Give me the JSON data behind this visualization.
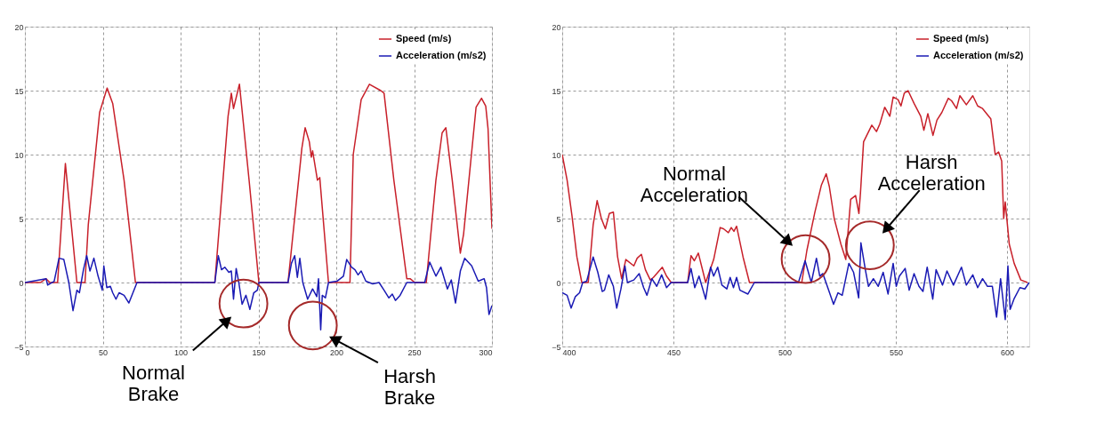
{
  "chart_data": [
    {
      "type": "line",
      "xlim": [
        0,
        300
      ],
      "xticks": [
        0,
        50,
        100,
        150,
        200,
        250,
        300
      ],
      "ylim": [
        -5,
        20
      ],
      "yticks": [
        -5,
        0,
        5,
        10,
        15,
        20
      ],
      "grid": true,
      "legend": "top right",
      "marker": "none",
      "line_style": "solid",
      "series": [
        {
          "name": "Speed (m/s)",
          "color": "#c8202a",
          "x": [
            0,
            10,
            13.6,
            16,
            21,
            26,
            33.4,
            38.6,
            40.7,
            48,
            52.8,
            56.4,
            63.7,
            71,
            122,
            130.5,
            132.6,
            134,
            137.8,
            144,
            150.3,
            169,
            177.9,
            180,
            182.7,
            184,
            184.8,
            187.9,
            189.4,
            195,
            205,
            208.8,
            210.9,
            216,
            221.3,
            228.6,
            230.7,
            237,
            245.3,
            247.4,
            250.5,
            257.8,
            264,
            268,
            270.4,
            274.5,
            279.7,
            281.8,
            289.8,
            293.3,
            296,
            297.5,
            300
          ],
          "values": [
            0,
            0,
            0.3,
            0,
            0,
            9.3,
            0,
            0,
            4.5,
            13.3,
            15.2,
            14,
            8,
            0,
            0,
            13,
            14.8,
            13.6,
            15.5,
            8,
            0,
            0,
            10.5,
            12.1,
            11,
            9.8,
            10.3,
            8,
            8.2,
            0,
            0,
            0,
            10,
            14.3,
            15.5,
            15,
            14.8,
            8,
            0.3,
            0.3,
            0,
            0,
            8,
            11.7,
            12.1,
            8,
            2.3,
            3.8,
            13.7,
            14.4,
            13.8,
            12,
            4.2
          ]
        },
        {
          "name": "Acceleration (m/s2)",
          "color": "#1a1ab4",
          "x": [
            0,
            13.6,
            14.6,
            18.8,
            21.9,
            25,
            28.2,
            30.9,
            33.4,
            35,
            37.6,
            39.7,
            41.8,
            44.3,
            47,
            49.7,
            50.7,
            52.6,
            54.9,
            56.4,
            58.5,
            60.5,
            63.7,
            66.8,
            72,
            122,
            124.2,
            126.3,
            128.4,
            131,
            132.6,
            134,
            135.7,
            137.4,
            139.5,
            142,
            144.5,
            147,
            149.3,
            150.3,
            169,
            171.2,
            173.3,
            175,
            176.6,
            178.5,
            181.6,
            184.8,
            187.5,
            188.6,
            190,
            191,
            193,
            195,
            200.4,
            204.6,
            206.7,
            209.8,
            212,
            214,
            216,
            219,
            223.4,
            227.5,
            230.7,
            233.8,
            236,
            238,
            241,
            245.3,
            250.5,
            256.8,
            260,
            264,
            267.2,
            271.4,
            273.9,
            276.6,
            279.7,
            282.5,
            287,
            291.2,
            295,
            296.5,
            298.1,
            300
          ],
          "values": [
            0,
            0.3,
            -0.2,
            0.1,
            1.9,
            1.8,
            0,
            -2.2,
            -0.6,
            -0.8,
            1,
            2.1,
            0.9,
            1.9,
            0.5,
            -0.6,
            1.3,
            -0.4,
            -0.3,
            -0.8,
            -1.3,
            -0.8,
            -1,
            -1.6,
            0,
            0,
            2.1,
            1,
            1.2,
            0.8,
            0.9,
            -1.3,
            1.1,
            0,
            -1.7,
            -1,
            -2.1,
            -0.8,
            -0.6,
            0,
            0,
            1.5,
            2.1,
            0.4,
            1.9,
            0,
            -1.3,
            -0.5,
            -1.1,
            0.3,
            -3.7,
            -1,
            -1.2,
            0,
            0.1,
            0.5,
            1.8,
            1.2,
            1,
            0.6,
            0.9,
            0.1,
            -0.1,
            0,
            -0.6,
            -1.2,
            -0.9,
            -1.4,
            -1,
            0,
            0,
            0,
            1.6,
            0.5,
            1.2,
            -0.5,
            0.2,
            -1.6,
            0.9,
            1.9,
            1.3,
            0.1,
            0.3,
            -0.4,
            -2.5,
            -1.8
          ]
        }
      ],
      "annotations": [
        "Normal Brake",
        "Harsh Brake"
      ]
    },
    {
      "type": "line",
      "xlim": [
        400,
        610
      ],
      "xticks": [
        400,
        450,
        500,
        550,
        600
      ],
      "ylim": [
        -5,
        20
      ],
      "yticks": [
        -5,
        0,
        5,
        10,
        15,
        20
      ],
      "grid": true,
      "legend": "top right",
      "marker": "none",
      "line_style": "solid",
      "series": [
        {
          "name": "Speed (m/s)",
          "color": "#c8202a",
          "x": [
            400,
            402.2,
            404.4,
            406.6,
            408.8,
            411.7,
            413.9,
            415.7,
            417.6,
            419.4,
            421.2,
            423,
            424.9,
            426.7,
            428.6,
            432.2,
            433.7,
            435.6,
            437.4,
            439.6,
            441,
            445,
            446.9,
            449,
            456.4,
            457.9,
            459.4,
            461.2,
            464.5,
            468.1,
            471,
            472.5,
            474.7,
            476,
            477.2,
            478.4,
            481.3,
            484.2,
            507.7,
            510,
            513.6,
            516.5,
            518.7,
            520.1,
            522.3,
            525.3,
            527.5,
            529.7,
            531.9,
            533.4,
            534.1,
            535.5,
            539.2,
            541.3,
            542.8,
            545,
            547.3,
            548.8,
            551,
            552.3,
            553.8,
            555.5,
            558.2,
            561.2,
            562.6,
            564.4,
            566.7,
            568.5,
            570.7,
            573.6,
            575.1,
            577.3,
            578.8,
            581.7,
            584.6,
            586.8,
            589,
            592.7,
            594.7,
            596.2,
            597.6,
            598.5,
            599.2,
            601,
            603.2,
            606.2,
            609.2
          ],
          "values": [
            10,
            8,
            5.2,
            2,
            0,
            0,
            4.5,
            6.4,
            5,
            4.2,
            5.4,
            5.5,
            2,
            0.3,
            1.8,
            1.3,
            1.9,
            2.2,
            1,
            0.2,
            0.4,
            1.2,
            0.5,
            0,
            0,
            2.1,
            1.7,
            2.3,
            0,
            1.8,
            4.3,
            4.2,
            3.9,
            4.3,
            4,
            4.4,
            2,
            0,
            0,
            2.5,
            5.5,
            7.6,
            8.5,
            7.5,
            5,
            3,
            1.8,
            6.5,
            6.8,
            5.4,
            7,
            11,
            12.3,
            11.8,
            12.4,
            13.7,
            13,
            14.5,
            14.3,
            13.8,
            14.8,
            15,
            14,
            13,
            11.9,
            13.2,
            11.5,
            12.7,
            13.3,
            14.4,
            14.2,
            13.6,
            14.6,
            13.9,
            14.6,
            13.8,
            13.6,
            12.8,
            10,
            10.2,
            9.5,
            5,
            6.3,
            3,
            1.5,
            0.2,
            0
          ]
        },
        {
          "name": "Acceleration (m/s2)",
          "color": "#1a1ab4",
          "x": [
            400,
            402.2,
            404,
            405.9,
            407.8,
            409.2,
            411,
            413.9,
            416,
            418,
            419,
            420.9,
            423,
            424.5,
            426.4,
            428.2,
            429.3,
            432.2,
            434.6,
            436.6,
            438.1,
            440.3,
            442.5,
            444.7,
            446.9,
            449,
            456.4,
            457.9,
            459.6,
            461.5,
            464.5,
            466.7,
            468.1,
            469.9,
            471.8,
            474,
            475.5,
            477,
            478.4,
            479.9,
            483.5,
            486.4,
            506.2,
            509.2,
            512,
            514.3,
            515.8,
            517.2,
            519.4,
            522,
            524,
            525.9,
            528.9,
            531,
            533.3,
            534.3,
            536.3,
            537.7,
            539.9,
            542.1,
            544.3,
            546.5,
            548.8,
            550.2,
            551.6,
            554.2,
            556,
            558.2,
            560.4,
            562.2,
            564.1,
            566.6,
            568.1,
            571,
            573,
            575.9,
            579.5,
            581.7,
            584.6,
            586.8,
            589,
            591.2,
            593.4,
            595.3,
            597.1,
            599.2,
            600.4,
            601.4,
            603.1,
            605.8,
            608,
            610
          ],
          "values": [
            -0.8,
            -1,
            -2,
            -1.1,
            -0.8,
            0,
            0.1,
            2,
            0.8,
            -0.7,
            -0.6,
            0.6,
            -0.3,
            -2,
            -0.5,
            1.3,
            0,
            0.2,
            0.7,
            -0.4,
            -1,
            0.3,
            -0.3,
            0.6,
            -0.4,
            0,
            0,
            1.1,
            -0.4,
            0.5,
            -1.3,
            1.2,
            0.5,
            1.2,
            -0.2,
            -0.5,
            0.4,
            -0.4,
            0.4,
            -0.6,
            -0.9,
            0,
            0,
            1.7,
            0,
            1.9,
            0.5,
            0.7,
            -0.4,
            -1.7,
            -0.8,
            -1,
            1.5,
            0.8,
            -1.2,
            3.1,
            1,
            -0.3,
            0.3,
            -0.3,
            0.8,
            -0.9,
            1.5,
            -0.3,
            0.5,
            1.1,
            -0.6,
            0.7,
            -0.3,
            -0.7,
            1.2,
            -1.3,
            1,
            -0.2,
            0.9,
            -0.2,
            1.2,
            -0.2,
            0.6,
            -0.4,
            0.3,
            -0.3,
            -0.3,
            -2.7,
            0.3,
            -2.9,
            1.3,
            -2.1,
            -1.3,
            -0.4,
            -0.5,
            0
          ]
        }
      ],
      "annotations": [
        "Normal Acceleration",
        "Harsh Acceleration"
      ]
    }
  ]
}
